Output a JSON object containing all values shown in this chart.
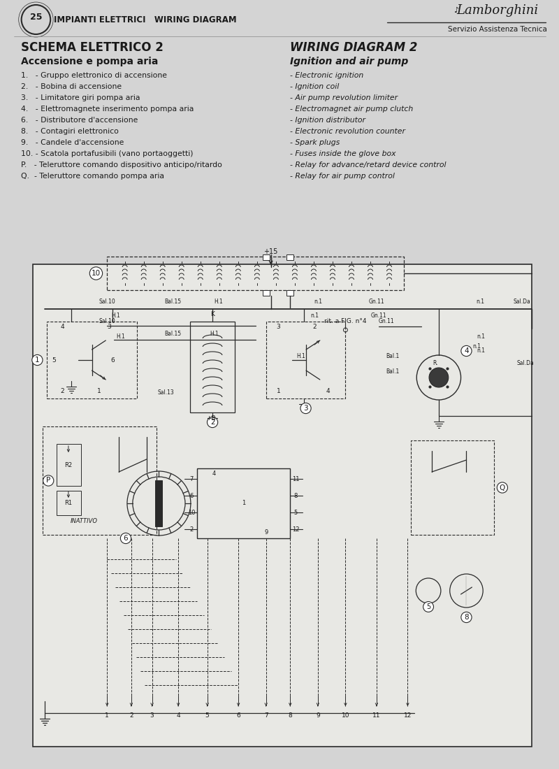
{
  "page_bg": "#d4d4d4",
  "diagram_bg": "#e8e8e4",
  "line_color": "#2a2a2a",
  "text_color": "#1a1a1a",
  "title_left": "IMPIANTI ELETTRICI   WIRING DIAGRAM",
  "title_right": "Lamborghini",
  "subtitle_right": "Servizio Assistenza Tecnica",
  "schema_left": "SCHEMA ELETTRICO 2",
  "schema_right": "WIRING DIAGRAM 2",
  "subschema_left": "Accensione e pompa aria",
  "subschema_right": "Ignition and air pump",
  "items_left": [
    "1.   - Gruppo elettronico di accensione",
    "2.   - Bobina di accensione",
    "3.   - Limitatore giri pompa aria",
    "4.   - Elettromagnete inserimento pompa aria",
    "6.   - Distributore d'accensione",
    "8.   - Contagiri elettronico",
    "9.   - Candele d'accensione",
    "10. - Scatola portafusibili (vano portaoggetti)",
    "P.   - Teleruttore comando dispositivo anticipo/ritardo",
    "Q.  - Teleruttore comando pompa aria"
  ],
  "items_right": [
    "- Electronic ignition",
    "- Ignition coil",
    "- Air pump revolution limiter",
    "- Electromagnet air pump clutch",
    "- Ignition distributor",
    "- Electronic revolution counter",
    "- Spark plugs",
    "- Fuses inside the glove box",
    "- Relay for advance/retard device control",
    "- Relay for air pump control"
  ]
}
